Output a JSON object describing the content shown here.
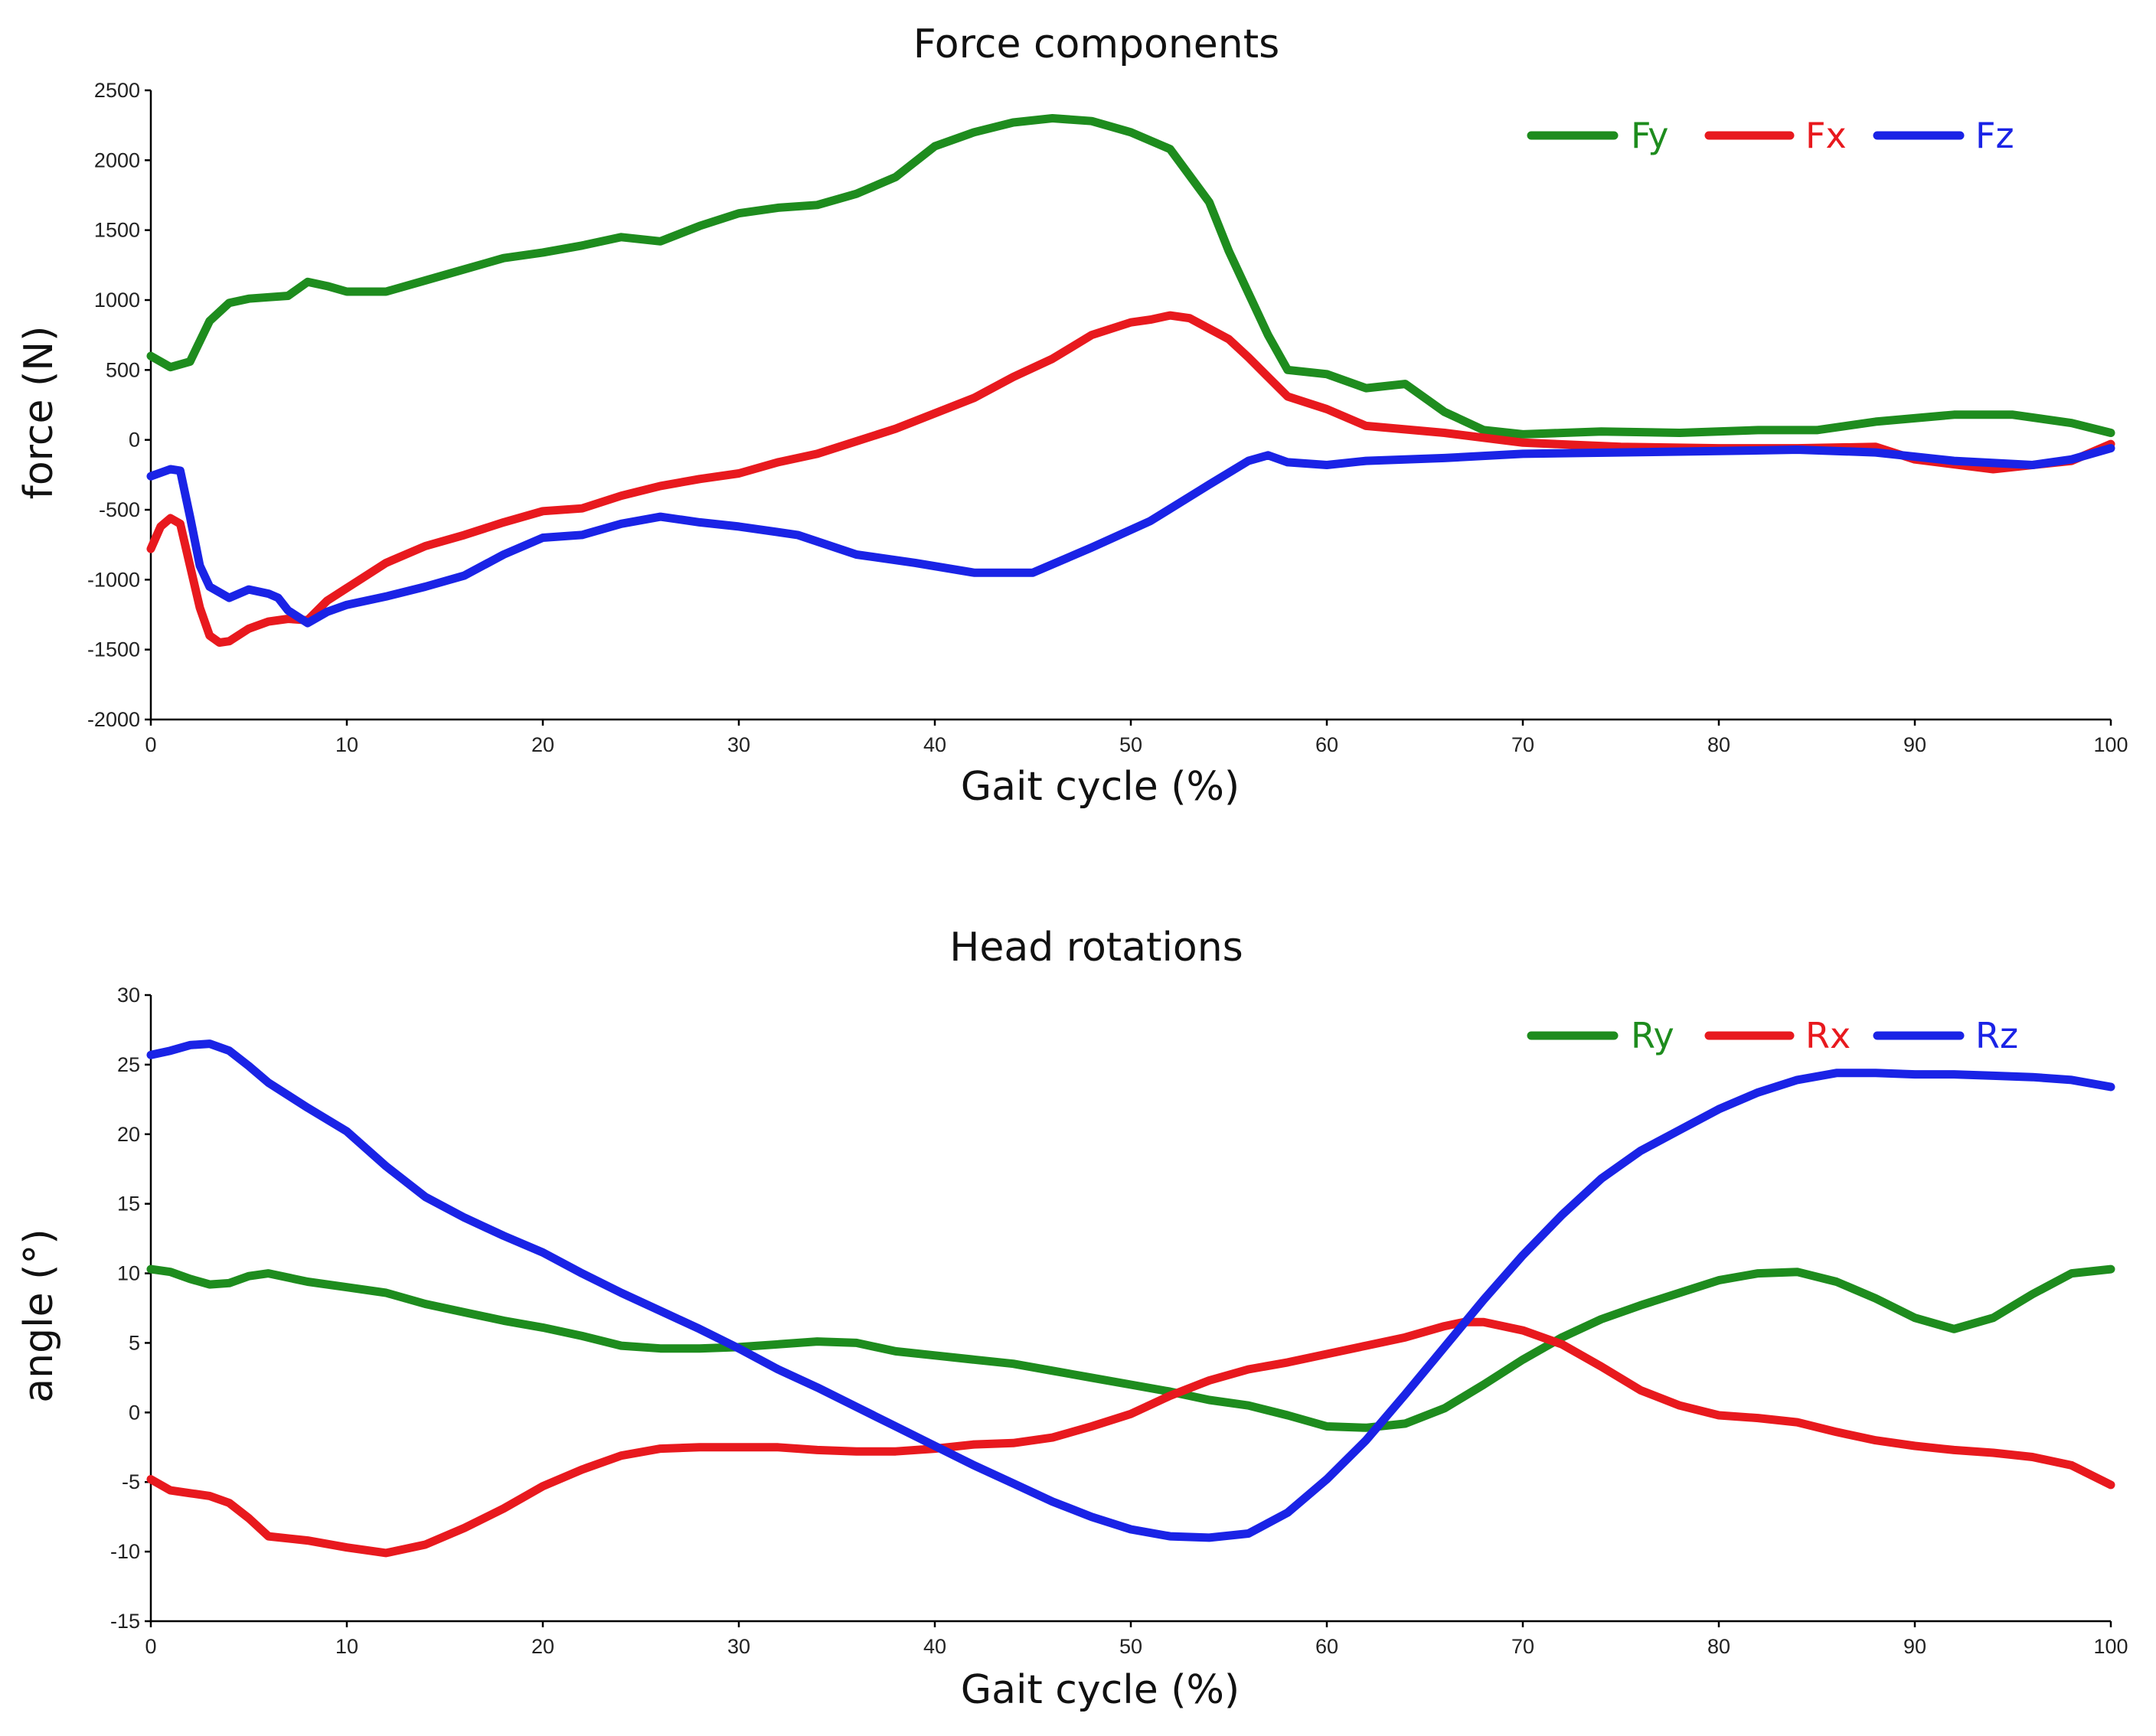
{
  "chart_data": [
    {
      "type": "line",
      "title": "Force components",
      "xlabel": "Gait cycle (%)",
      "ylabel": "force (N)",
      "xlim": [
        0,
        100
      ],
      "ylim": [
        -2000,
        2500
      ],
      "xticks": [
        0,
        10,
        20,
        30,
        40,
        50,
        60,
        70,
        80,
        90,
        100
      ],
      "yticks": [
        -2000,
        -1500,
        -1000,
        -500,
        0,
        500,
        1000,
        1500,
        2000,
        2500
      ],
      "legend_position": "top-right",
      "grid": false,
      "series": [
        {
          "name": "Fy",
          "color": "#1e8c1e",
          "x": [
            0,
            1,
            2,
            3,
            4,
            5,
            6,
            7,
            8,
            9,
            10,
            12,
            14,
            16,
            18,
            20,
            22,
            24,
            26,
            28,
            30,
            32,
            34,
            36,
            38,
            40,
            42,
            44,
            46,
            48,
            50,
            52,
            54,
            55,
            56,
            57,
            58,
            60,
            62,
            64,
            66,
            68,
            70,
            74,
            78,
            82,
            85,
            88,
            92,
            95,
            98,
            100
          ],
          "y": [
            600,
            520,
            560,
            850,
            980,
            1010,
            1020,
            1030,
            1130,
            1100,
            1060,
            1060,
            1140,
            1220,
            1300,
            1340,
            1390,
            1450,
            1420,
            1530,
            1620,
            1660,
            1680,
            1760,
            1880,
            2100,
            2200,
            2270,
            2300,
            2280,
            2200,
            2080,
            1700,
            1350,
            1050,
            750,
            500,
            470,
            370,
            400,
            200,
            70,
            40,
            60,
            50,
            70,
            70,
            130,
            180,
            180,
            120,
            50
          ]
        },
        {
          "name": "Fx",
          "color": "#e8191e",
          "x": [
            0,
            0.5,
            1,
            1.5,
            2,
            2.5,
            3,
            3.5,
            4,
            5,
            6,
            7,
            8,
            9,
            10,
            12,
            14,
            16,
            18,
            20,
            22,
            24,
            26,
            28,
            30,
            32,
            34,
            36,
            38,
            40,
            42,
            44,
            46,
            48,
            50,
            51,
            52,
            53,
            55,
            56,
            57,
            58,
            60,
            62,
            66,
            70,
            75,
            80,
            84,
            88,
            90,
            94,
            98,
            100
          ],
          "y": [
            -780,
            -620,
            -560,
            -600,
            -900,
            -1200,
            -1400,
            -1450,
            -1440,
            -1350,
            -1300,
            -1280,
            -1290,
            -1150,
            -1060,
            -880,
            -760,
            -680,
            -590,
            -510,
            -490,
            -400,
            -330,
            -280,
            -240,
            -160,
            -100,
            -10,
            80,
            190,
            300,
            450,
            580,
            750,
            840,
            860,
            890,
            870,
            720,
            590,
            450,
            310,
            220,
            100,
            50,
            -20,
            -50,
            -60,
            -60,
            -50,
            -140,
            -210,
            -150,
            -30
          ]
        },
        {
          "name": "Fz",
          "color": "#1a23e6",
          "x": [
            0,
            1,
            1.5,
            2,
            2.5,
            3,
            4,
            5,
            6,
            6.5,
            7,
            8,
            9,
            10,
            12,
            14,
            16,
            18,
            20,
            22,
            24,
            26,
            28,
            30,
            33,
            36,
            39,
            42,
            45,
            48,
            51,
            54,
            56,
            57,
            58,
            60,
            62,
            66,
            70,
            80,
            84,
            88,
            92,
            96,
            98,
            100
          ],
          "y": [
            -260,
            -210,
            -220,
            -550,
            -900,
            -1050,
            -1130,
            -1070,
            -1100,
            -1130,
            -1220,
            -1310,
            -1230,
            -1180,
            -1120,
            -1050,
            -970,
            -820,
            -700,
            -680,
            -600,
            -550,
            -590,
            -620,
            -680,
            -820,
            -880,
            -950,
            -950,
            -770,
            -580,
            -320,
            -150,
            -110,
            -160,
            -180,
            -150,
            -130,
            -100,
            -80,
            -70,
            -90,
            -150,
            -180,
            -140,
            -60
          ]
        }
      ]
    },
    {
      "type": "line",
      "title": "Head rotations",
      "xlabel": "Gait cycle (%)",
      "ylabel": "angle (°)",
      "xlim": [
        0,
        100
      ],
      "ylim": [
        -15,
        30
      ],
      "xticks": [
        0,
        10,
        20,
        30,
        40,
        50,
        60,
        70,
        80,
        90,
        100
      ],
      "yticks": [
        -15,
        -10,
        -5,
        0,
        5,
        10,
        15,
        20,
        25,
        30
      ],
      "legend_position": "top-right",
      "grid": false,
      "series": [
        {
          "name": "Ry",
          "color": "#1e8c1e",
          "x": [
            0,
            1,
            2,
            3,
            4,
            5,
            6,
            8,
            10,
            12,
            14,
            16,
            18,
            20,
            22,
            24,
            26,
            28,
            30,
            32,
            34,
            36,
            38,
            40,
            42,
            44,
            46,
            48,
            50,
            52,
            54,
            56,
            58,
            60,
            62,
            64,
            66,
            68,
            70,
            72,
            74,
            76,
            78,
            80,
            82,
            84,
            86,
            88,
            90,
            92,
            94,
            96,
            98,
            100
          ],
          "y": [
            10.3,
            10.1,
            9.6,
            9.2,
            9.3,
            9.8,
            10.0,
            9.4,
            9.0,
            8.6,
            7.8,
            7.2,
            6.6,
            6.1,
            5.5,
            4.8,
            4.6,
            4.6,
            4.7,
            4.9,
            5.1,
            5.0,
            4.4,
            4.1,
            3.8,
            3.5,
            3.0,
            2.5,
            2.0,
            1.5,
            0.9,
            0.5,
            -0.2,
            -1.0,
            -1.1,
            -0.8,
            0.3,
            2.0,
            3.8,
            5.4,
            6.7,
            7.7,
            8.6,
            9.5,
            10.0,
            10.1,
            9.4,
            8.2,
            6.8,
            6.0,
            6.8,
            8.5,
            10.0,
            10.3
          ]
        },
        {
          "name": "Rx",
          "color": "#e8191e",
          "x": [
            0,
            1,
            2,
            3,
            4,
            5,
            6,
            8,
            10,
            12,
            14,
            16,
            18,
            20,
            22,
            24,
            26,
            28,
            30,
            32,
            34,
            36,
            38,
            40,
            42,
            44,
            46,
            48,
            50,
            52,
            54,
            56,
            58,
            60,
            62,
            64,
            66,
            67,
            68,
            70,
            72,
            74,
            76,
            78,
            80,
            82,
            84,
            86,
            88,
            90,
            92,
            94,
            96,
            98,
            100
          ],
          "y": [
            -4.8,
            -5.6,
            -5.8,
            -6.0,
            -6.5,
            -7.6,
            -8.9,
            -9.2,
            -9.7,
            -10.1,
            -9.5,
            -8.3,
            -6.9,
            -5.3,
            -4.1,
            -3.1,
            -2.6,
            -2.5,
            -2.5,
            -2.5,
            -2.7,
            -2.8,
            -2.8,
            -2.6,
            -2.3,
            -2.2,
            -1.8,
            -1.0,
            -0.1,
            1.2,
            2.3,
            3.1,
            3.6,
            4.2,
            4.8,
            5.4,
            6.2,
            6.5,
            6.5,
            5.9,
            4.9,
            3.3,
            1.6,
            0.5,
            -0.2,
            -0.4,
            -0.7,
            -1.4,
            -2.0,
            -2.4,
            -2.7,
            -2.9,
            -3.2,
            -3.8,
            -5.2
          ]
        },
        {
          "name": "Rz",
          "color": "#1a23e6",
          "x": [
            0,
            1,
            2,
            3,
            4,
            5,
            6,
            8,
            10,
            12,
            14,
            16,
            18,
            20,
            22,
            24,
            26,
            28,
            30,
            32,
            34,
            36,
            38,
            40,
            42,
            44,
            46,
            48,
            50,
            52,
            54,
            56,
            58,
            60,
            62,
            64,
            66,
            68,
            70,
            72,
            74,
            76,
            78,
            80,
            82,
            84,
            86,
            88,
            90,
            92,
            94,
            96,
            98,
            100
          ],
          "y": [
            25.7,
            26.0,
            26.4,
            26.5,
            26.0,
            24.9,
            23.7,
            21.9,
            20.2,
            17.7,
            15.5,
            14.0,
            12.7,
            11.5,
            10.0,
            8.6,
            7.3,
            6.0,
            4.6,
            3.1,
            1.8,
            0.4,
            -1.0,
            -2.4,
            -3.8,
            -5.1,
            -6.4,
            -7.5,
            -8.4,
            -8.9,
            -9.0,
            -8.7,
            -7.2,
            -4.8,
            -2.0,
            1.3,
            4.7,
            8.1,
            11.3,
            14.2,
            16.8,
            18.8,
            20.3,
            21.8,
            23.0,
            23.9,
            24.4,
            24.4,
            24.3,
            24.3,
            24.2,
            24.1,
            23.9,
            23.4
          ]
        }
      ]
    }
  ]
}
